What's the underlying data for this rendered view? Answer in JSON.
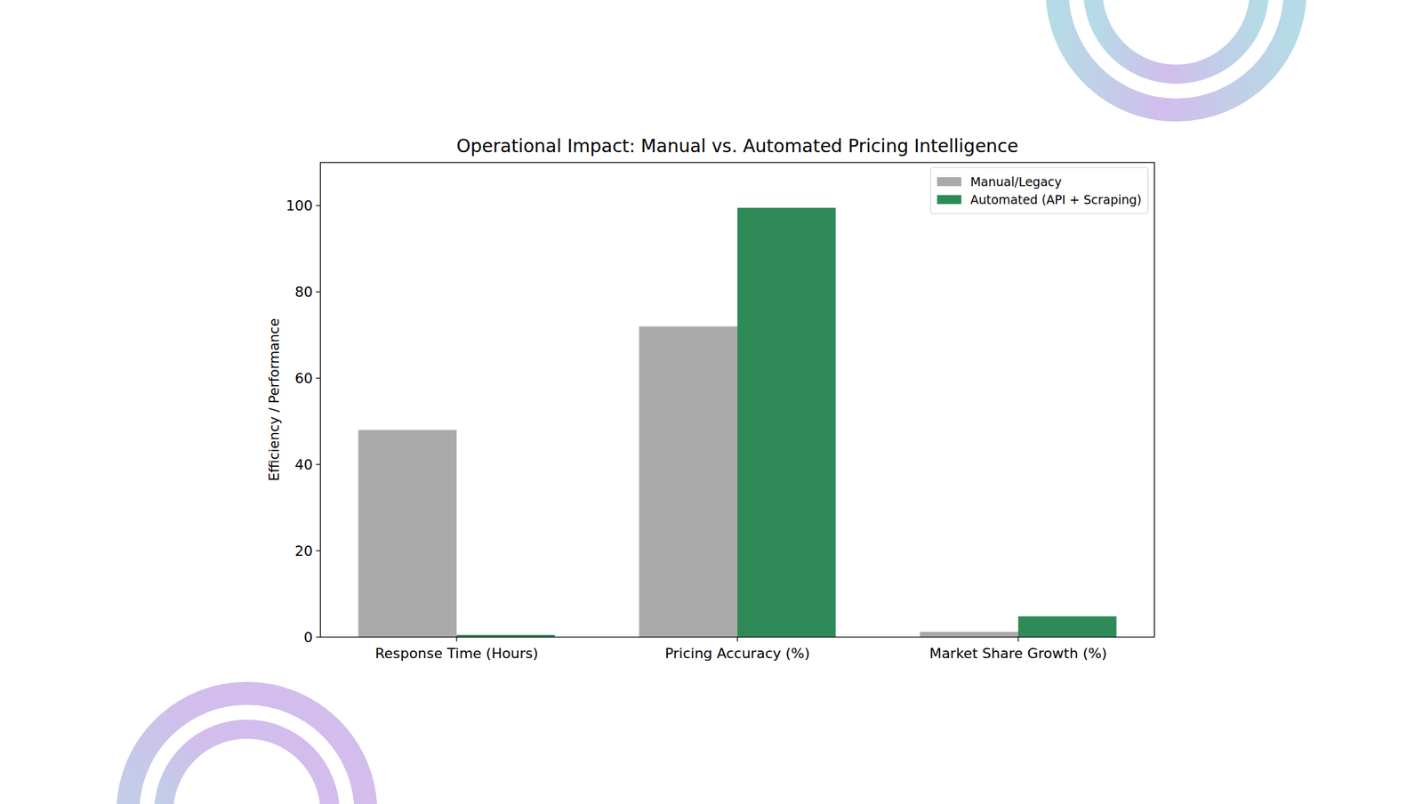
{
  "chart_data": {
    "type": "bar",
    "title": "Operational Impact: Manual vs. Automated Pricing Intelligence",
    "y_label": "Efficiency / Performance",
    "categories": [
      "Response Time (Hours)",
      "Pricing Accuracy (%)",
      "Market Share Growth (%)"
    ],
    "series": [
      {
        "name": "Manual/Legacy",
        "color": "#aaaaaa",
        "values": [
          48,
          72,
          1.2
        ]
      },
      {
        "name": "Automated (API + Scraping)",
        "color": "#2e8b57",
        "values": [
          0.5,
          99.5,
          4.8
        ]
      }
    ],
    "ylim": [
      0,
      110
    ],
    "yticks": [
      0,
      20,
      40,
      60,
      80,
      100
    ],
    "legend": "upper right",
    "grid": false
  }
}
